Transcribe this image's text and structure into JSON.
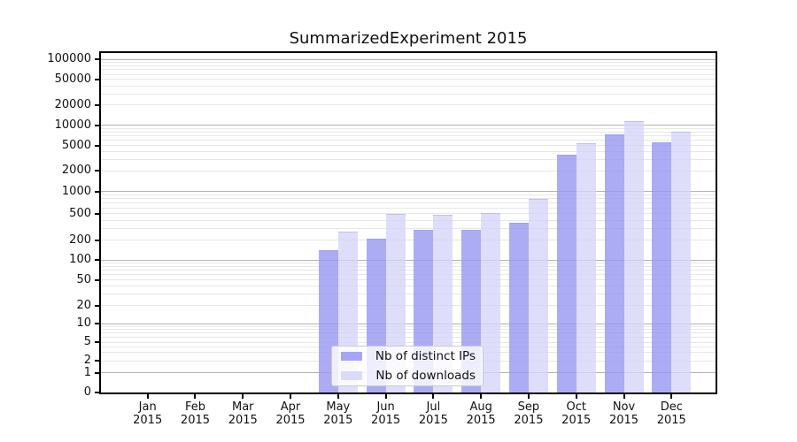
{
  "chart_data": {
    "type": "bar",
    "title": "SummarizedExperiment 2015",
    "categories": [
      "Jan 2015",
      "Feb 2015",
      "Mar 2015",
      "Apr 2015",
      "May 2015",
      "Jun 2015",
      "Jul 2015",
      "Aug 2015",
      "Sep 2015",
      "Oct 2015",
      "Nov 2015",
      "Dec 2015"
    ],
    "months": [
      "Jan",
      "Feb",
      "Mar",
      "Apr",
      "May",
      "Jun",
      "Jul",
      "Aug",
      "Sep",
      "Oct",
      "Nov",
      "Dec"
    ],
    "year": "2015",
    "series": [
      {
        "name": "Nb of distinct IPs",
        "color": "#9696f3",
        "values": [
          0,
          0,
          0,
          0,
          140,
          210,
          290,
          290,
          370,
          3550,
          7250,
          5600
        ]
      },
      {
        "name": "Nb of downloads",
        "color": "#d5d5fa",
        "values": [
          0,
          0,
          0,
          0,
          265,
          490,
          480,
          510,
          795,
          5400,
          11600,
          8000
        ]
      }
    ],
    "xlabel": "",
    "ylabel": "",
    "y_axis": {
      "scale": "log-with-zero",
      "ylim": [
        0,
        100000
      ],
      "tick_values": [
        0,
        1,
        2,
        5,
        10,
        20,
        50,
        100,
        200,
        500,
        1000,
        2000,
        5000,
        10000,
        20000,
        50000,
        100000
      ]
    },
    "grid": {
      "on": true,
      "major_color": "#b3b3b3",
      "minor_color": "#e7e7e7"
    },
    "legend": {
      "position": "inside-bottom-center",
      "items": [
        "Nb of distinct IPs",
        "Nb of downloads"
      ]
    }
  }
}
